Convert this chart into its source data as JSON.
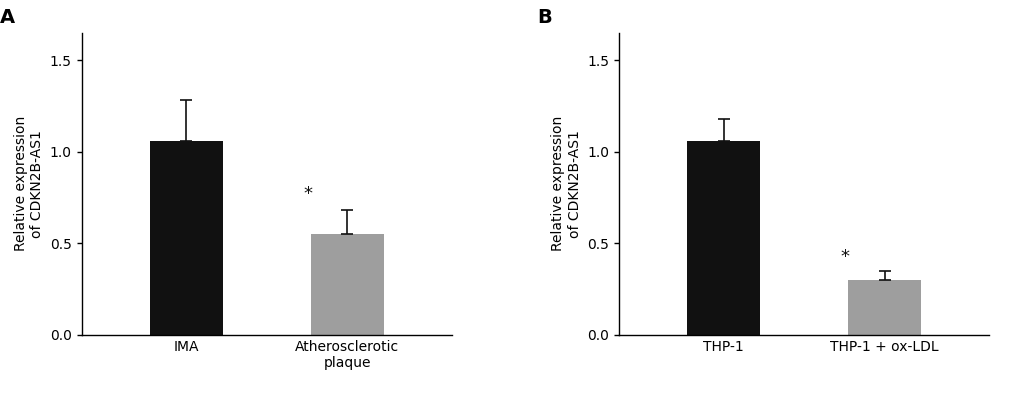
{
  "panel_A": {
    "label": "A",
    "categories": [
      "IMA",
      "Atherosclerotic\nplaque"
    ],
    "values": [
      1.06,
      0.55
    ],
    "errors": [
      0.22,
      0.13
    ],
    "colors": [
      "#111111",
      "#9e9e9e"
    ],
    "ylabel": "Relative expression\nof CDKN2B-AS1",
    "ylim": [
      0,
      1.65
    ],
    "yticks": [
      0.0,
      0.5,
      1.0,
      1.5
    ],
    "star_positions": [
      1
    ],
    "star_offsets": [
      0.04
    ]
  },
  "panel_B": {
    "label": "B",
    "categories": [
      "THP-1",
      "THP-1 + ox-LDL"
    ],
    "values": [
      1.06,
      0.3
    ],
    "errors": [
      0.12,
      0.045
    ],
    "colors": [
      "#111111",
      "#9e9e9e"
    ],
    "ylabel": "Relative expression\nof CDKN2B-AS1",
    "ylim": [
      0,
      1.65
    ],
    "yticks": [
      0.0,
      0.5,
      1.0,
      1.5
    ],
    "star_positions": [
      1
    ],
    "star_offsets": [
      0.03
    ]
  },
  "background_color": "#ffffff",
  "bar_width": 0.45,
  "capsize": 4,
  "errorbar_linewidth": 1.2,
  "errorbar_color": "#111111",
  "tick_fontsize": 10,
  "label_fontsize": 10,
  "panel_label_fontsize": 14,
  "star_fontsize": 13
}
